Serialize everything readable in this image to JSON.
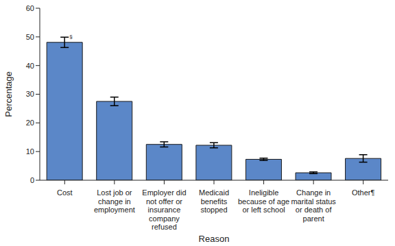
{
  "chart_data": {
    "type": "bar",
    "categories": [
      "Cost",
      "Lost job or change in employment",
      "Employer did not offer or insurance company refused",
      "Medicaid benefits stopped",
      "Ineligible because of age or left school",
      "Change in marital status or death of parent",
      "Other¶"
    ],
    "values": [
      48.1,
      27.5,
      12.5,
      12.2,
      7.3,
      2.6,
      7.6
    ],
    "errors": [
      1.8,
      1.5,
      0.9,
      0.9,
      0.4,
      0.3,
      1.3
    ],
    "color": "#5b87c8",
    "x_label": "Reason",
    "y_label": "Percentage",
    "ylim": [
      0,
      60
    ],
    "yticks": [
      0,
      10,
      20,
      30,
      40,
      50,
      60
    ],
    "grid": false,
    "annotations": [
      {
        "category": "Cost",
        "text": "§"
      }
    ]
  }
}
